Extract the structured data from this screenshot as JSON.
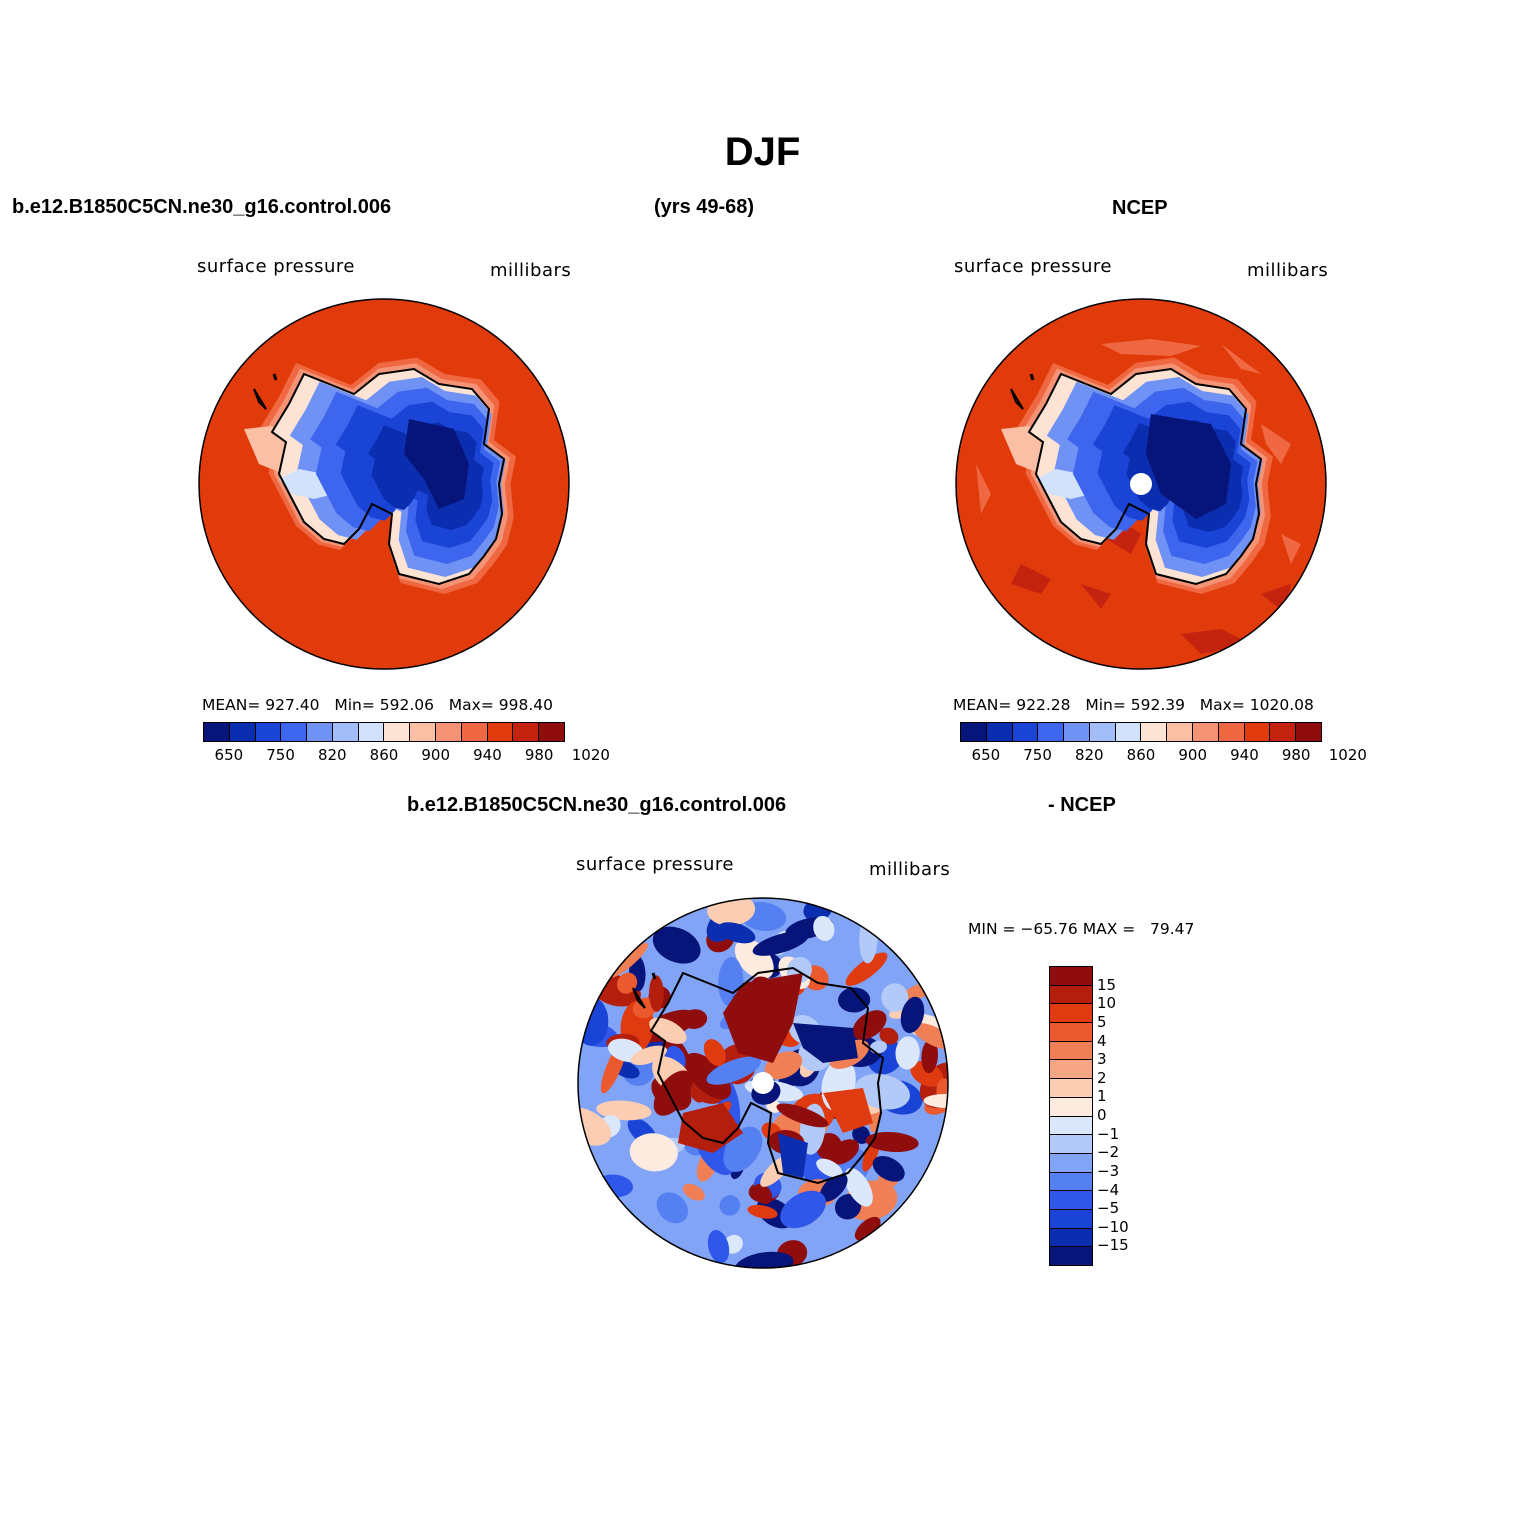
{
  "figure_title": "DJF",
  "header": {
    "left": "b.e12.B1850C5CN.ne30_g16.control.006",
    "center": "(yrs 49-68)",
    "right": "NCEP"
  },
  "diff_header": {
    "left": "b.e12.B1850C5CN.ne30_g16.control.006",
    "right": "- NCEP"
  },
  "colors": {
    "ocean": "#e13a0b",
    "coast": "#000000",
    "abs_palette": [
      "#07147a",
      "#0b2eb0",
      "#1a44d6",
      "#3d65ee",
      "#6f92f4",
      "#a3bdf8",
      "#d2e2fb",
      "#fde3d3",
      "#fbbfa5",
      "#f49375",
      "#ef6841",
      "#e13a0b",
      "#c3230f",
      "#8f0d0d"
    ],
    "diff_palette": [
      "#07147a",
      "#0b2eb0",
      "#1a44d6",
      "#2f58ea",
      "#5580f2",
      "#82a4f6",
      "#b3caf9",
      "#dbe8fc",
      "#fdebe0",
      "#fbcdb3",
      "#f6a684",
      "#f17f56",
      "#ea5a2e",
      "#df3a10",
      "#b41e0c",
      "#8f0d0d"
    ]
  },
  "chart_data": [
    {
      "type": "heatmap",
      "panel": "model",
      "projection": "south polar stereographic",
      "variable_label": "surface pressure",
      "units_label": "millibars",
      "stats": {
        "mean_label": "MEAN=",
        "mean": "927.40",
        "min_label": "Min=",
        "min": "592.06",
        "max_label": "Max=",
        "max": "998.40"
      },
      "contour_levels": [
        650,
        700,
        750,
        800,
        820,
        840,
        860,
        880,
        900,
        920,
        940,
        960,
        980,
        1000,
        1020
      ],
      "colorbar_tick_labels": [
        "650",
        "750",
        "820",
        "860",
        "900",
        "940",
        "980",
        "1020"
      ],
      "features": {
        "pole_marker": false,
        "ocean_value_mbar_approx": 990,
        "interior_min_mbar": 592.06
      }
    },
    {
      "type": "heatmap",
      "panel": "obs",
      "projection": "south polar stereographic",
      "variable_label": "surface pressure",
      "units_label": "millibars",
      "stats": {
        "mean_label": "MEAN=",
        "mean": "922.28",
        "min_label": "Min=",
        "min": "592.39",
        "max_label": "Max=",
        "max": "1020.08"
      },
      "contour_levels": [
        650,
        700,
        750,
        800,
        820,
        840,
        860,
        880,
        900,
        920,
        940,
        960,
        980,
        1000,
        1020
      ],
      "colorbar_tick_labels": [
        "650",
        "750",
        "820",
        "860",
        "900",
        "940",
        "980",
        "1020"
      ],
      "features": {
        "pole_marker": true,
        "ocean_value_mbar_approx": 990,
        "interior_min_mbar": 592.39
      }
    },
    {
      "type": "heatmap",
      "panel": "difference",
      "projection": "south polar stereographic",
      "variable_label": "surface pressure",
      "units_label": "millibars",
      "stats": {
        "min_label": "MIN =",
        "min": "−65.76",
        "max_label": "MAX =",
        "max": "79.47"
      },
      "contour_levels": [
        -15,
        -10,
        -5,
        -4,
        -3,
        -2,
        -1,
        0,
        1,
        2,
        3,
        4,
        5,
        10,
        15
      ],
      "colorbar_tick_labels": [
        "15",
        "10",
        "5",
        "4",
        "3",
        "2",
        "1",
        "0",
        "−1",
        "−2",
        "−3",
        "−4",
        "−5",
        "−10",
        "−15"
      ],
      "features": {
        "pole_marker": true
      }
    }
  ]
}
